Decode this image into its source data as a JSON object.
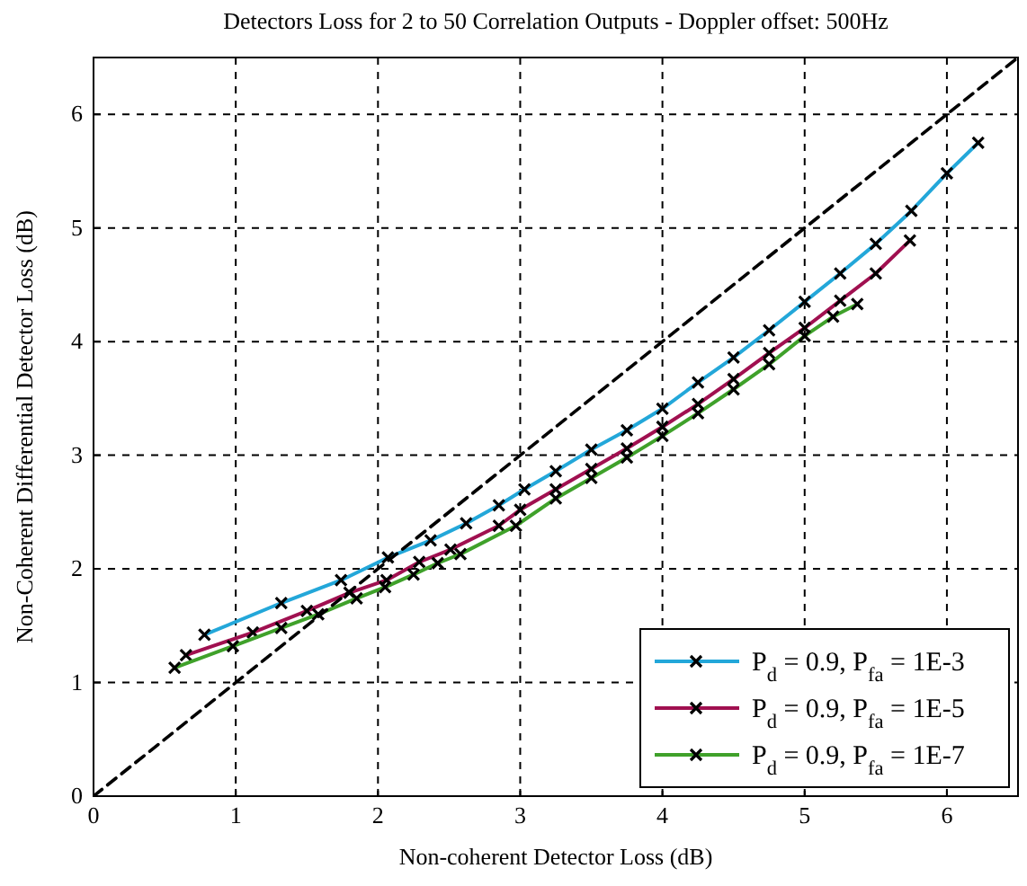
{
  "chart_data": {
    "type": "line",
    "title": "Detectors Loss for 2 to 50 Correlation Outputs - Doppler offset: 500Hz",
    "xlabel": "Non-coherent Detector Loss (dB)",
    "ylabel": "Non-Coherent Differential Detector Loss (dB)",
    "xlim": [
      0,
      6.5
    ],
    "ylim": [
      0,
      6.5
    ],
    "xticks": [
      0,
      1,
      2,
      3,
      4,
      5,
      6
    ],
    "yticks": [
      0,
      1,
      2,
      3,
      4,
      5,
      6
    ],
    "grid": true,
    "legend": "bottom right",
    "marker": "cross",
    "series": [
      {
        "name": "P$_{d}$ = 0.9, P$_{fa}$ = 1E-3",
        "color": "#23a7d9",
        "x": [
          0.78,
          1.32,
          1.74,
          2.07,
          2.37,
          2.62,
          2.85,
          3.03,
          3.25,
          3.5,
          3.75,
          4.0,
          4.25,
          4.5,
          4.75,
          5.0,
          5.25,
          5.5,
          5.75,
          6.0,
          6.22
        ],
        "values": [
          1.42,
          1.7,
          1.9,
          2.1,
          2.25,
          2.4,
          2.56,
          2.7,
          2.86,
          3.05,
          3.22,
          3.41,
          3.64,
          3.86,
          4.1,
          4.35,
          4.6,
          4.86,
          5.15,
          5.48,
          5.75
        ]
      },
      {
        "name": "P$_{d}$ = 0.9, P$_{fa}$ = 1E-5",
        "color": "#a01050",
        "x": [
          0.65,
          1.12,
          1.5,
          1.8,
          2.06,
          2.29,
          2.51,
          2.85,
          3.0,
          3.25,
          3.5,
          3.75,
          4.0,
          4.25,
          4.5,
          4.75,
          5.0,
          5.25,
          5.5,
          5.74
        ],
        "values": [
          1.24,
          1.44,
          1.63,
          1.79,
          1.9,
          2.06,
          2.17,
          2.38,
          2.52,
          2.7,
          2.88,
          3.06,
          3.25,
          3.45,
          3.67,
          3.9,
          4.12,
          4.36,
          4.6,
          4.89
        ]
      },
      {
        "name": "P$_{d}$ = 0.9, P$_{fa}$ = 1E-7",
        "color": "#3fa12a",
        "x": [
          0.57,
          0.98,
          1.32,
          1.58,
          1.85,
          2.05,
          2.25,
          2.42,
          2.58,
          2.97,
          3.25,
          3.5,
          3.75,
          4.0,
          4.25,
          4.5,
          4.75,
          5.0,
          5.2,
          5.37
        ],
        "values": [
          1.13,
          1.32,
          1.48,
          1.6,
          1.74,
          1.84,
          1.95,
          2.05,
          2.13,
          2.38,
          2.62,
          2.8,
          2.98,
          3.17,
          3.37,
          3.58,
          3.8,
          4.05,
          4.22,
          4.33
        ]
      },
      {
        "color": "#000000",
        "line_style": "dashed",
        "marker": "none",
        "x": [
          0,
          6.5
        ],
        "values": [
          0,
          6.5
        ]
      }
    ]
  }
}
